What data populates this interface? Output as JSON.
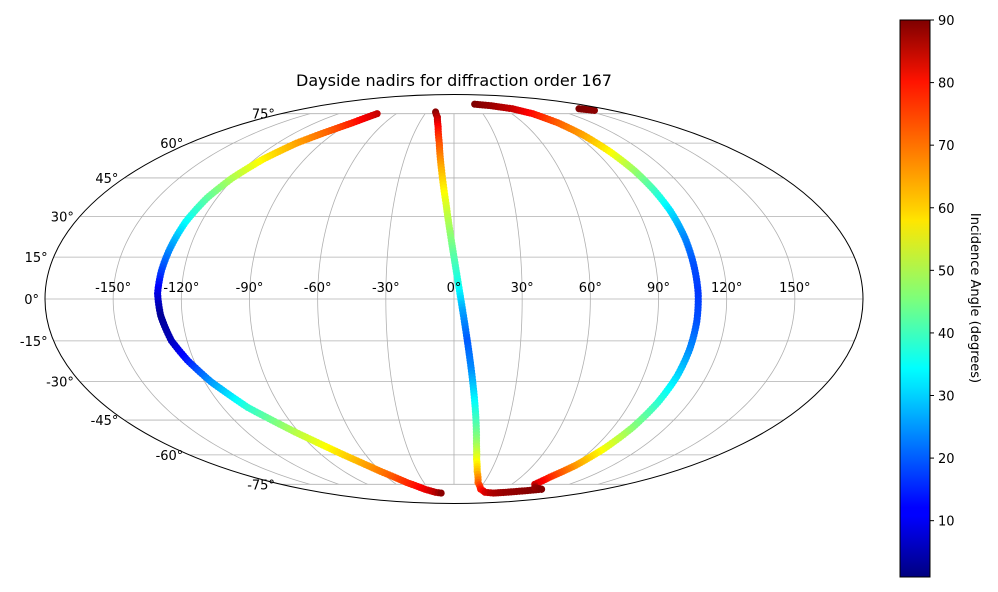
{
  "chart_data": {
    "type": "scatter",
    "projection": "mollweide",
    "title": "Dayside nadirs for diffraction order 167",
    "grid": true,
    "x_tick_labels": [
      "-150°",
      "-120°",
      "-90°",
      "-60°",
      "-30°",
      "0°",
      "30°",
      "60°",
      "90°",
      "120°",
      "150°"
    ],
    "x_tick_values": [
      -150,
      -120,
      -90,
      -60,
      -30,
      0,
      30,
      60,
      90,
      120,
      150
    ],
    "y_tick_labels": [
      "-75°",
      "-60°",
      "-45°",
      "-30°",
      "-15°",
      "0°",
      "15°",
      "30°",
      "45°",
      "60°",
      "75°"
    ],
    "y_tick_values": [
      -75,
      -60,
      -45,
      -30,
      -15,
      0,
      15,
      30,
      45,
      60,
      75
    ],
    "colorbar": {
      "label": "Incidence Angle (degrees)",
      "colormap": "jet",
      "range": [
        1,
        90
      ],
      "tick_labels": [
        "10",
        "20",
        "30",
        "40",
        "50",
        "60",
        "70",
        "80",
        "90"
      ],
      "tick_values": [
        10,
        20,
        30,
        40,
        50,
        60,
        70,
        80,
        90
      ]
    },
    "series": [
      {
        "points": [
          {
            "lon": -80,
            "lat": 75,
            "c": 84
          },
          {
            "lon": -88,
            "lat": 70,
            "c": 77
          },
          {
            "lon": -98,
            "lat": 65,
            "c": 70
          },
          {
            "lon": -107,
            "lat": 60,
            "c": 65
          },
          {
            "lon": -115,
            "lat": 53,
            "c": 58
          },
          {
            "lon": -121,
            "lat": 45,
            "c": 50
          },
          {
            "lon": -125,
            "lat": 37,
            "c": 43
          },
          {
            "lon": -127.5,
            "lat": 28,
            "c": 35
          },
          {
            "lon": -129,
            "lat": 18,
            "c": 25
          },
          {
            "lon": -130,
            "lat": 10,
            "c": 18
          },
          {
            "lon": -130.5,
            "lat": 2,
            "c": 10
          },
          {
            "lon": -129.5,
            "lat": -6,
            "c": 3
          },
          {
            "lon": -127,
            "lat": -15,
            "c": 6
          },
          {
            "lon": -123,
            "lat": -22,
            "c": 14
          },
          {
            "lon": -117,
            "lat": -30,
            "c": 25
          },
          {
            "lon": -107,
            "lat": -40,
            "c": 38
          },
          {
            "lon": -92,
            "lat": -50,
            "c": 50
          },
          {
            "lon": -75,
            "lat": -60,
            "c": 60
          },
          {
            "lon": -60,
            "lat": -68,
            "c": 68
          },
          {
            "lon": -47,
            "lat": -74,
            "c": 75
          },
          {
            "lon": -35,
            "lat": -78,
            "c": 80
          },
          {
            "lon": -25,
            "lat": -80,
            "c": 85
          },
          {
            "lon": -18,
            "lat": -80.5,
            "c": 89
          }
        ]
      },
      {
        "points": [
          {
            "lon": -20,
            "lat": 76,
            "c": 89
          },
          {
            "lon": -16,
            "lat": 73,
            "c": 85
          },
          {
            "lon": -13,
            "lat": 68,
            "c": 79
          },
          {
            "lon": -10,
            "lat": 60,
            "c": 72
          },
          {
            "lon": -7,
            "lat": 48,
            "c": 63
          },
          {
            "lon": -4,
            "lat": 35,
            "c": 54
          },
          {
            "lon": -1,
            "lat": 20,
            "c": 45
          },
          {
            "lon": 2,
            "lat": 5,
            "c": 36
          },
          {
            "lon": 4,
            "lat": -5,
            "c": 26
          },
          {
            "lon": 6,
            "lat": -15,
            "c": 20
          },
          {
            "lon": 8,
            "lat": -25,
            "c": 24
          },
          {
            "lon": 10,
            "lat": -35,
            "c": 32
          },
          {
            "lon": 12,
            "lat": -45,
            "c": 40
          },
          {
            "lon": 14,
            "lat": -55,
            "c": 48
          },
          {
            "lon": 16,
            "lat": -62,
            "c": 55
          },
          {
            "lon": 19,
            "lat": -68,
            "c": 62
          },
          {
            "lon": 24,
            "lat": -74,
            "c": 70
          },
          {
            "lon": 32,
            "lat": -78,
            "c": 77
          },
          {
            "lon": 42,
            "lat": -80,
            "c": 82
          },
          {
            "lon": 55,
            "lat": -80.5,
            "c": 86
          },
          {
            "lon": 70,
            "lat": -80,
            "c": 88
          },
          {
            "lon": 90,
            "lat": -79,
            "c": 89
          },
          {
            "lon": 105,
            "lat": -78,
            "c": 90
          }
        ]
      },
      {
        "points": [
          {
            "lon": 30,
            "lat": 81,
            "c": 90
          },
          {
            "lon": 50,
            "lat": 80,
            "c": 88
          },
          {
            "lon": 70,
            "lat": 78,
            "c": 84
          },
          {
            "lon": 82,
            "lat": 75,
            "c": 78
          },
          {
            "lon": 90,
            "lat": 70,
            "c": 71
          },
          {
            "lon": 95,
            "lat": 64,
            "c": 65
          },
          {
            "lon": 99,
            "lat": 56,
            "c": 57
          },
          {
            "lon": 102,
            "lat": 48,
            "c": 48
          },
          {
            "lon": 104,
            "lat": 40,
            "c": 40
          },
          {
            "lon": 105.5,
            "lat": 32,
            "c": 32
          },
          {
            "lon": 106.5,
            "lat": 22,
            "c": 24
          },
          {
            "lon": 107,
            "lat": 12,
            "c": 19
          },
          {
            "lon": 107.5,
            "lat": 2,
            "c": 17
          },
          {
            "lon": 107.5,
            "lat": -8,
            "c": 19
          },
          {
            "lon": 107,
            "lat": -18,
            "c": 24
          },
          {
            "lon": 106,
            "lat": -28,
            "c": 31
          },
          {
            "lon": 104,
            "lat": -38,
            "c": 38
          },
          {
            "lon": 101,
            "lat": -48,
            "c": 46
          },
          {
            "lon": 97,
            "lat": -57,
            "c": 55
          },
          {
            "lon": 92,
            "lat": -65,
            "c": 65
          },
          {
            "lon": 86,
            "lat": -71,
            "c": 75
          },
          {
            "lon": 84,
            "lat": -75,
            "c": 82
          },
          {
            "lon": 92,
            "lat": -77,
            "c": 88
          },
          {
            "lon": 105,
            "lat": -78,
            "c": 90
          }
        ]
      },
      {
        "points": [
          {
            "lon": 150,
            "lat": 78,
            "c": 90
          },
          {
            "lon": 160,
            "lat": 77,
            "c": 89
          }
        ]
      }
    ]
  }
}
